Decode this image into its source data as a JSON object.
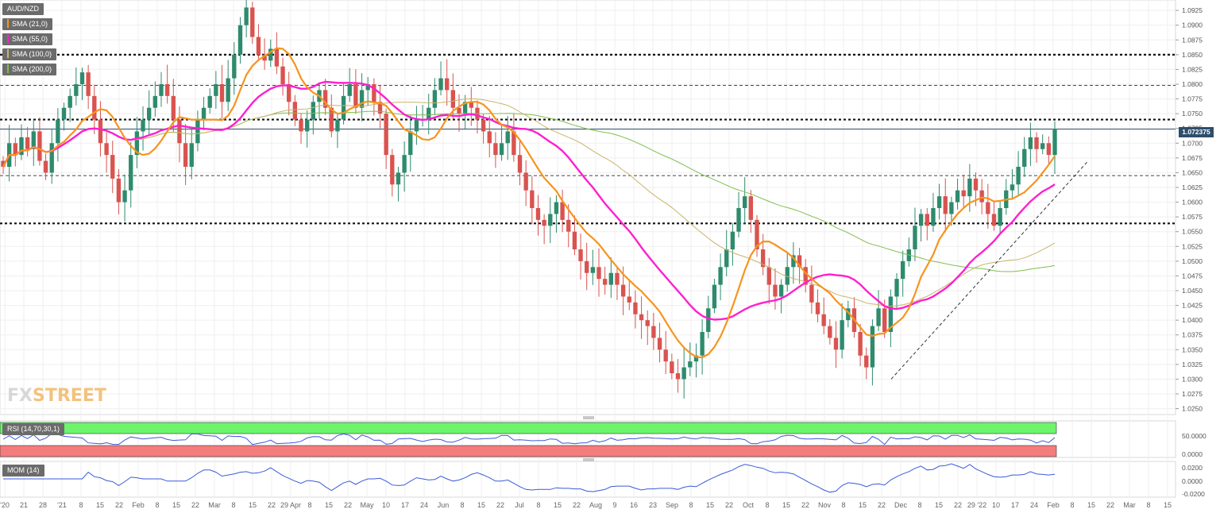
{
  "instrument": "AUD/NZD",
  "current_price": "1.072375",
  "watermark": {
    "part1": "FX",
    "part2": "STREET"
  },
  "indicators": {
    "sma21": {
      "label": "SMA (21,0)",
      "color": "#f7941d"
    },
    "sma55": {
      "label": "SMA (55,0)",
      "color": "#ff1fd0"
    },
    "sma100": {
      "label": "SMA (100,0)",
      "color": "#c8b46a"
    },
    "sma200": {
      "label": "SMA (200,0)",
      "color": "#7fbf4d"
    }
  },
  "rsi": {
    "label": "RSI (14,70,30,1)",
    "ticks": [
      "50.0000",
      "0.0000"
    ]
  },
  "mom": {
    "label": "MOM (14)",
    "ticks": [
      "0.0200",
      "0.0000",
      "-0.0200"
    ]
  },
  "colors": {
    "up": "#2e8b6d",
    "down": "#d9534f",
    "rsi_line": "#3a5bd9",
    "mom_line": "#3a5bd9",
    "rsi_overbought": "#6cf56c",
    "rsi_oversold": "#f47c7c",
    "price_line": "#2e4e6c"
  },
  "chart_data": {
    "type": "candlestick",
    "title": "AUD/NZD",
    "y_ticks": [
      "1.0925",
      "1.0900",
      "1.0875",
      "1.0850",
      "1.0825",
      "1.0800",
      "1.0775",
      "1.0750",
      "1.0725",
      "1.0700",
      "1.0675",
      "1.0650",
      "1.0625",
      "1.0600",
      "1.0575",
      "1.0550",
      "1.0525",
      "1.0500",
      "1.0475",
      "1.0450",
      "1.0425",
      "1.0400",
      "1.0375",
      "1.0350",
      "1.0325",
      "1.0300",
      "1.0275",
      "1.0250"
    ],
    "ylim": [
      1.024,
      1.094
    ],
    "x_ticks": [
      "'20",
      "21",
      "28",
      "'21",
      "8",
      "15",
      "22",
      "Feb",
      "8",
      "15",
      "22",
      "Mar",
      "8",
      "15",
      "22",
      "29 Apr",
      "8",
      "15",
      "22",
      "May",
      "10",
      "17",
      "24",
      "Jun",
      "8",
      "15",
      "22",
      "Jul",
      "8",
      "15",
      "22",
      "Aug",
      "9",
      "16",
      "23",
      "Sep",
      "8",
      "15",
      "22",
      "Oct",
      "8",
      "15",
      "22",
      "Nov",
      "8",
      "15",
      "22",
      "Dec",
      "8",
      "15",
      "22",
      "29 '22",
      "10",
      "17",
      "24",
      "Feb",
      "8",
      "15",
      "22",
      "Mar",
      "8",
      "15"
    ],
    "horizontal_levels": [
      {
        "value": 1.085,
        "style": "heavy-dotted"
      },
      {
        "value": 1.0798,
        "style": "light-dashed"
      },
      {
        "value": 1.074,
        "style": "heavy-dotted"
      },
      {
        "value": 1.0645,
        "style": "light-dashed"
      },
      {
        "value": 1.0564,
        "style": "heavy-dotted"
      }
    ],
    "trendline": {
      "from": [
        1.03
      ],
      "to": [
        1.067
      ],
      "style": "dashed"
    },
    "close_series": [
      1.066,
      1.07,
      1.068,
      1.071,
      1.069,
      1.072,
      1.067,
      1.065,
      1.07,
      1.074,
      1.076,
      1.078,
      1.08,
      1.082,
      1.078,
      1.074,
      1.07,
      1.068,
      1.064,
      1.06,
      1.062,
      1.068,
      1.072,
      1.074,
      1.076,
      1.078,
      1.08,
      1.078,
      1.074,
      1.07,
      1.066,
      1.07,
      1.074,
      1.076,
      1.078,
      1.08,
      1.077,
      1.081,
      1.085,
      1.09,
      1.093,
      1.088,
      1.085,
      1.084,
      1.086,
      1.083,
      1.08,
      1.077,
      1.074,
      1.072,
      1.074,
      1.077,
      1.079,
      1.076,
      1.072,
      1.074,
      1.078,
      1.08,
      1.076,
      1.079,
      1.08,
      1.077,
      1.075,
      1.068,
      1.063,
      1.065,
      1.068,
      1.072,
      1.074,
      1.074,
      1.076,
      1.079,
      1.081,
      1.079,
      1.076,
      1.075,
      1.077,
      1.076,
      1.074,
      1.072,
      1.07,
      1.068,
      1.07,
      1.072,
      1.068,
      1.065,
      1.062,
      1.059,
      1.057,
      1.056,
      1.058,
      1.06,
      1.057,
      1.055,
      1.052,
      1.05,
      1.048,
      1.049,
      1.047,
      1.046,
      1.048,
      1.046,
      1.044,
      1.043,
      1.041,
      1.04,
      1.039,
      1.037,
      1.035,
      1.033,
      1.031,
      1.03,
      1.032,
      1.033,
      1.034,
      1.038,
      1.042,
      1.046,
      1.049,
      1.052,
      1.055,
      1.059,
      1.061,
      1.057,
      1.052,
      1.049,
      1.046,
      1.044,
      1.046,
      1.049,
      1.051,
      1.049,
      1.046,
      1.043,
      1.041,
      1.039,
      1.037,
      1.035,
      1.04,
      1.042,
      1.038,
      1.034,
      1.032,
      1.039,
      1.042,
      1.038,
      1.044,
      1.047,
      1.05,
      1.052,
      1.056,
      1.058,
      1.056,
      1.059,
      1.061,
      1.058,
      1.06,
      1.062,
      1.061,
      1.064,
      1.062,
      1.06,
      1.058,
      1.056,
      1.059,
      1.062,
      1.063,
      1.066,
      1.069,
      1.071,
      1.069,
      1.07,
      1.068,
      1.0724
    ]
  }
}
